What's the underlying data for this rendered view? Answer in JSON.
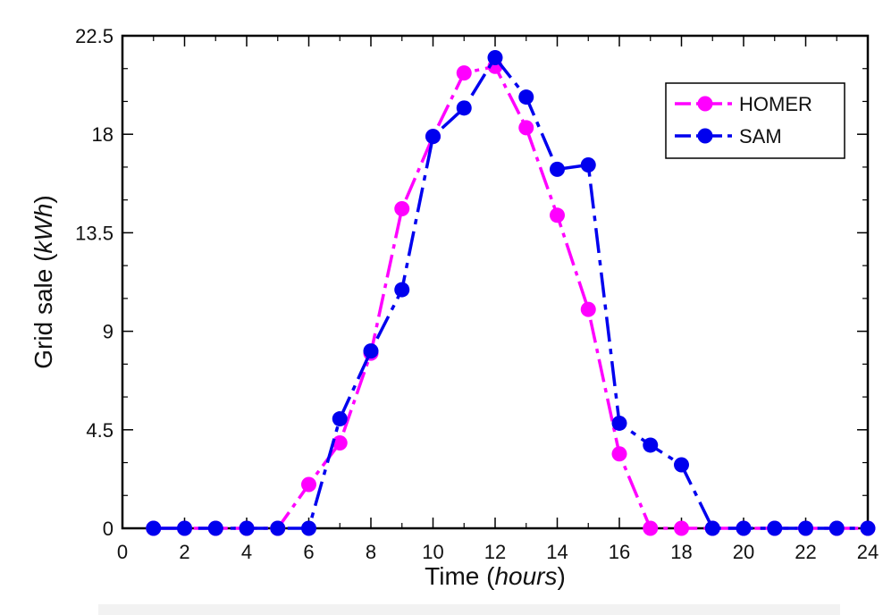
{
  "chart_data": {
    "type": "line",
    "title": "",
    "xlabel": {
      "prefix": "Time (",
      "emph": "hours",
      "suffix": ")"
    },
    "ylabel": {
      "prefix": "Grid sale (",
      "emph": "kWh",
      "suffix": ")"
    },
    "xlim": [
      0,
      24
    ],
    "ylim": [
      0,
      22.5
    ],
    "xticks": [
      0,
      2,
      4,
      6,
      8,
      10,
      12,
      14,
      16,
      18,
      20,
      22,
      24
    ],
    "yticks": [
      0,
      4.5,
      9,
      13.5,
      18,
      22.5
    ],
    "ytick_labels": [
      "0",
      "4.5",
      "9",
      "13.5",
      "18",
      "22.5"
    ],
    "grid": false,
    "legend_position": "top-right",
    "series": [
      {
        "name": "HOMER",
        "color": "#ff00ff",
        "x": [
          1,
          2,
          3,
          4,
          5,
          6,
          7,
          8,
          9,
          10,
          11,
          12,
          13,
          14,
          15,
          16,
          17,
          18,
          19,
          20,
          21,
          22,
          23,
          24
        ],
        "y": [
          0,
          0,
          0,
          0,
          0,
          2.0,
          3.9,
          8.0,
          14.6,
          17.9,
          20.8,
          21.1,
          18.3,
          14.3,
          10.0,
          3.4,
          0,
          0,
          0,
          0,
          0,
          0,
          0,
          0
        ]
      },
      {
        "name": "SAM",
        "color": "#0000ee",
        "x": [
          1,
          2,
          3,
          4,
          5,
          6,
          7,
          8,
          9,
          10,
          11,
          12,
          13,
          14,
          15,
          16,
          17,
          18,
          19,
          20,
          21,
          22,
          23,
          24
        ],
        "y": [
          0,
          0,
          0,
          0,
          0,
          0,
          5.0,
          8.1,
          10.9,
          17.9,
          19.2,
          21.5,
          19.7,
          16.4,
          16.6,
          4.8,
          3.8,
          2.9,
          0,
          0,
          0,
          0,
          0,
          0
        ]
      }
    ]
  }
}
